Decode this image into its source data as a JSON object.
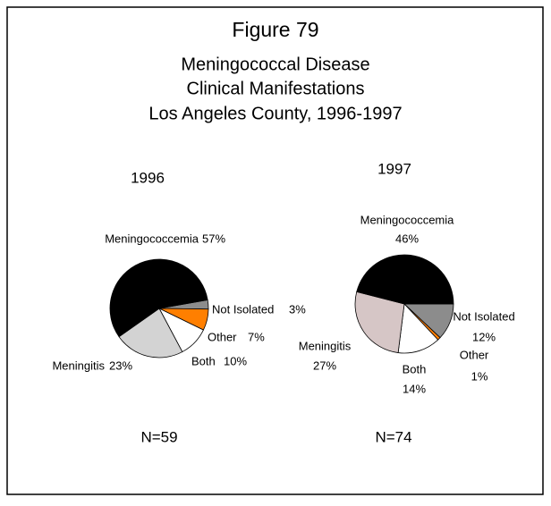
{
  "header": {
    "figure": "Figure 79",
    "title_lines": [
      "Meningococcal Disease",
      "Clinical Manifestations",
      "Los Angeles County, 1996-1997"
    ]
  },
  "chart_data": [
    {
      "type": "pie",
      "title": "1996",
      "categories": [
        "Not Isolated",
        "Other",
        "Both",
        "Meningitis",
        "Meningococcemia"
      ],
      "values": [
        3,
        7,
        10,
        23,
        57
      ],
      "value_labels": [
        "3%",
        "7%",
        "10%",
        "23%",
        "57%"
      ],
      "colors": [
        "#8c8c8c",
        "#ff7f00",
        "#ffffff",
        "#d3d3d3",
        "#000000"
      ],
      "note": "N=59"
    },
    {
      "type": "pie",
      "title": "1997",
      "categories": [
        "Not Isolated",
        "Other",
        "Both",
        "Meningitis",
        "Meningococcemia"
      ],
      "values": [
        12,
        1,
        14,
        27,
        46
      ],
      "value_labels": [
        "12%",
        "1%",
        "14%",
        "27%",
        "46%"
      ],
      "colors": [
        "#8c8c8c",
        "#ff7f00",
        "#ffffff",
        "#d6c6c6",
        "#000000"
      ],
      "note": "N=74"
    }
  ]
}
